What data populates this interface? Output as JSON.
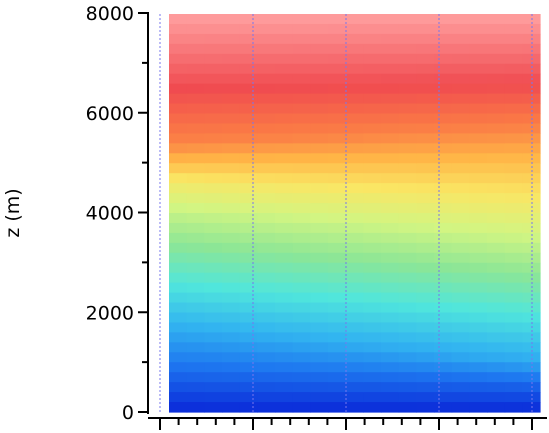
{
  "chart_data": {
    "type": "heatmap",
    "title": "",
    "xlabel": "",
    "ylabel": "z (m)",
    "ylim": [
      0,
      8000
    ],
    "y_ticks": [
      {
        "value": 0,
        "label": "0"
      },
      {
        "value": 2000,
        "label": "2000"
      },
      {
        "value": 4000,
        "label": "4000"
      },
      {
        "value": 6000,
        "label": "6000"
      },
      {
        "value": 8000,
        "label": "8000"
      }
    ],
    "x_tick_labels": [],
    "grid": "dotted vertical lines",
    "grid_color": "#7777ee",
    "colormap": {
      "name": "rainbow",
      "stops": [
        {
          "t": 0.0,
          "color": "#0a28d8"
        },
        {
          "t": 0.12,
          "color": "#1e78f0"
        },
        {
          "t": 0.22,
          "color": "#32b4f0"
        },
        {
          "t": 0.32,
          "color": "#50e6dc"
        },
        {
          "t": 0.42,
          "color": "#8ce696"
        },
        {
          "t": 0.52,
          "color": "#d2f582"
        },
        {
          "t": 0.62,
          "color": "#fae664"
        },
        {
          "t": 0.72,
          "color": "#ffb446"
        },
        {
          "t": 0.82,
          "color": "#fa7846"
        },
        {
          "t": 0.9,
          "color": "#f04b50"
        },
        {
          "t": 1.0,
          "color": "#ffa0a0"
        }
      ]
    },
    "columns": 21,
    "rows": 40,
    "color_anchor_heights_left": [
      0,
      800,
      1600,
      2400,
      3200,
      4000,
      4600,
      5000,
      5400,
      6500,
      8000
    ],
    "color_anchor_heights_right": [
      0,
      600,
      1000,
      1800,
      2600,
      3400,
      4200,
      5000,
      5700,
      6600,
      8000
    ]
  }
}
